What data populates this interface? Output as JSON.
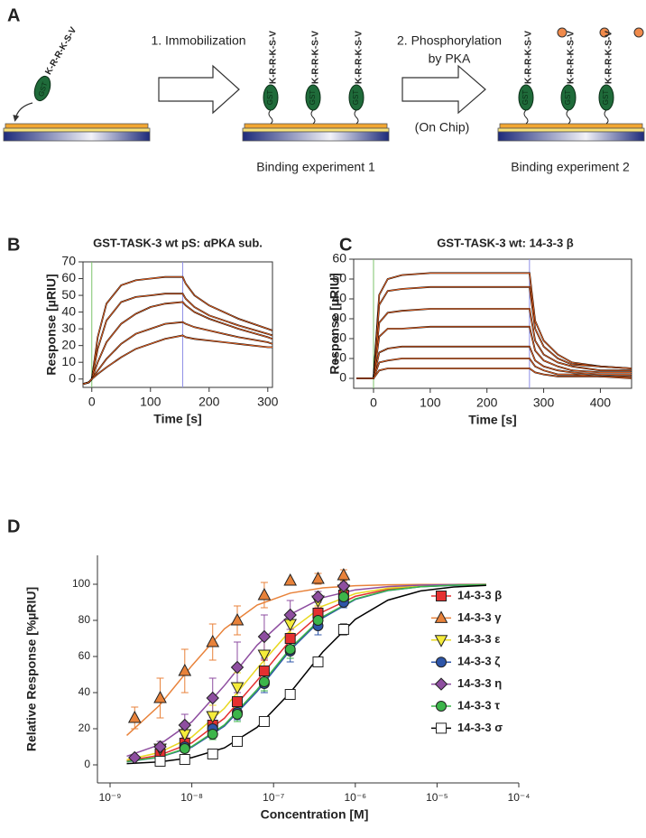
{
  "panel_a": {
    "label": "A",
    "peptide": "K-R-R-K-S-V",
    "gst": "GST",
    "step_1": "1. Immobilization",
    "step_2": [
      "2. Phosphorylation",
      "by PKA"
    ],
    "on_chip": "(On Chip)",
    "result_1": "Binding experiment 1",
    "result_2": "Binding experiment 2"
  },
  "chart_data": [
    {
      "type": "line",
      "panel": "B",
      "title": "GST-TASK-3 wt pS: αPKA sub.",
      "x_label": "Time [s]",
      "y_label": "Response [µRIU]",
      "frame": true,
      "fit_color": "#f26522",
      "xlim": [
        -15,
        308
      ],
      "ylim": [
        -5,
        70
      ],
      "xticks": [
        0,
        100,
        200,
        300
      ],
      "yticks": [
        0,
        10,
        20,
        30,
        40,
        50,
        60,
        70
      ],
      "injections": [
        {
          "x": 0,
          "color": "#7cc36b"
        },
        {
          "x": 155,
          "color": "#8f8fe6"
        }
      ],
      "x": [
        -15,
        -5,
        0,
        10,
        25,
        50,
        75,
        100,
        125,
        155,
        160,
        175,
        200,
        250,
        300,
        308
      ],
      "series": [
        {
          "color": "#000000",
          "values": [
            -3,
            -2,
            0,
            25,
            45,
            56,
            59,
            60,
            61,
            61,
            57,
            50,
            44,
            36,
            30,
            29
          ]
        },
        {
          "color": "#000000",
          "values": [
            -3,
            -2,
            0,
            18,
            35,
            46,
            49,
            50,
            51,
            51,
            48,
            43,
            38,
            32,
            27,
            26
          ]
        },
        {
          "color": "#000000",
          "values": [
            -3,
            -2,
            0,
            10,
            22,
            33,
            39,
            43,
            45,
            46,
            44,
            40,
            36,
            30,
            25,
            24
          ]
        },
        {
          "color": "#000000",
          "values": [
            -3,
            -2,
            0,
            5,
            12,
            21,
            27,
            30,
            33,
            34,
            33,
            31,
            29,
            25,
            22,
            21
          ]
        },
        {
          "color": "#000000",
          "values": [
            -3,
            -2,
            0,
            3,
            7,
            13,
            18,
            21,
            24,
            26,
            25,
            24,
            23,
            21,
            19,
            19
          ]
        }
      ]
    },
    {
      "type": "line",
      "panel": "C",
      "title": "GST-TASK-3 wt: 14-3-3 β",
      "x_label": "Time [s]",
      "y_label": "Response [µRIU]",
      "frame": true,
      "fit_color": "#f26522",
      "xlim": [
        -35,
        455
      ],
      "ylim": [
        -5,
        60
      ],
      "xticks": [
        0,
        100,
        200,
        300,
        400
      ],
      "yticks": [
        0,
        10,
        20,
        30,
        40,
        50,
        60
      ],
      "injections": [
        {
          "x": 0,
          "color": "#7cc36b"
        },
        {
          "x": 275,
          "color": "#8f8fe6"
        }
      ],
      "x": [
        -30,
        -5,
        0,
        10,
        25,
        50,
        100,
        200,
        275,
        285,
        300,
        325,
        350,
        400,
        455
      ],
      "series": [
        {
          "color": "#000000",
          "values": [
            0,
            0,
            0,
            42,
            50,
            52,
            53,
            53,
            53,
            29,
            19,
            12,
            8,
            6,
            5
          ]
        },
        {
          "color": "#000000",
          "values": [
            0,
            0,
            0,
            37,
            44,
            45,
            46,
            46,
            46,
            25,
            16,
            10,
            7,
            6,
            5
          ]
        },
        {
          "color": "#000000",
          "values": [
            0,
            0,
            0,
            28,
            33,
            34,
            35,
            35,
            35,
            19,
            12,
            8,
            6,
            4,
            4
          ]
        },
        {
          "color": "#000000",
          "values": [
            0,
            0,
            0,
            21,
            25,
            25,
            26,
            26,
            26,
            14,
            9,
            6,
            4,
            3,
            3
          ]
        },
        {
          "color": "#000000",
          "values": [
            0,
            0,
            0,
            13,
            15,
            16,
            16,
            16,
            16,
            9,
            6,
            4,
            3,
            2,
            2
          ]
        },
        {
          "color": "#000000",
          "values": [
            0,
            0,
            0,
            8,
            9,
            10,
            10,
            10,
            10,
            6,
            4,
            2,
            2,
            1,
            1
          ]
        },
        {
          "color": "#000000",
          "values": [
            0,
            0,
            0,
            4,
            5,
            5,
            5,
            5,
            5,
            3,
            2,
            1,
            1,
            1,
            0
          ]
        }
      ]
    },
    {
      "type": "scatter",
      "panel": "D",
      "x_label": "Concentration [M]",
      "y_label": "Relative Response [%µRIU]",
      "xlog": true,
      "xlim": [
        1e-09,
        0.0001
      ],
      "xticks": [
        {
          "value": 1e-09,
          "label": "10⁻⁹"
        },
        {
          "value": 1e-08,
          "label": "10⁻⁸"
        },
        {
          "value": 1e-07,
          "label": "10⁻⁷"
        },
        {
          "value": 1e-06,
          "label": "10⁻⁶"
        },
        {
          "value": 1e-05,
          "label": "10⁻⁵"
        },
        {
          "value": 0.0001,
          "label": "10⁻⁴"
        }
      ],
      "ylim": [
        -10,
        116
      ],
      "yticks": [
        0,
        20,
        40,
        60,
        80,
        100
      ],
      "legend": "right",
      "x": [
        2e-09,
        4.1e-09,
        8.2e-09,
        1.8e-08,
        3.6e-08,
        7.7e-08,
        1.6e-07,
        3.5e-07,
        7.2e-07
      ],
      "fit_x": [
        1.6e-09,
        4e-09,
        1e-08,
        2.5e-08,
        6.3e-08,
        1.6e-07,
        4e-07,
        1e-06,
        2.5e-06,
        6.3e-06,
        1.6e-05,
        4e-05
      ],
      "series": [
        {
          "name": "14-3-3 β",
          "marker": "square",
          "color": "#e53030",
          "line_color": "#e53030",
          "values": [
            null,
            6,
            12,
            22,
            35,
            52,
            70,
            84,
            94
          ],
          "errors": [
            null,
            2,
            3,
            4,
            5,
            6,
            5,
            3,
            2
          ],
          "fit": [
            2.2,
            5.3,
            12.2,
            25.8,
            46.7,
            69.0,
            84.7,
            93.3,
            97.2,
            98.9,
            99.6,
            99.8
          ]
        },
        {
          "name": "14-3-3 γ",
          "marker": "triangle-up",
          "color": "#e8823a",
          "line_color": "#e8823a",
          "values": [
            26,
            37,
            52,
            68,
            80,
            94,
            102,
            103,
            105
          ],
          "errors": [
            6,
            11,
            12,
            10,
            8,
            7,
            null,
            3,
            3
          ],
          "fit": [
            16.3,
            32.8,
            54.9,
            75.3,
            88.5,
            95.1,
            98.0,
            99.2,
            99.7,
            99.9,
            99.9,
            100
          ]
        },
        {
          "name": "14-3-3 ε",
          "marker": "triangle-down",
          "color": "#f5ec3a",
          "line_color": "#e8d820",
          "values": [
            null,
            9,
            17,
            27,
            43,
            61,
            78,
            91,
            97
          ],
          "errors": [
            null,
            2,
            4,
            6,
            8,
            9,
            5,
            3,
            2
          ],
          "fit": [
            2.8,
            6.8,
            15.4,
            31.3,
            53.4,
            74.4,
            87.9,
            94.8,
            97.8,
            99.1,
            99.7,
            99.9
          ]
        },
        {
          "name": "14-3-3 ζ",
          "marker": "circle",
          "color": "#2d55a8",
          "line_color": "#2d55a8",
          "values": [
            null,
            null,
            10,
            20,
            29,
            45,
            63,
            77,
            90
          ],
          "errors": [
            null,
            null,
            2,
            3,
            4,
            5,
            6,
            5,
            3
          ],
          "fit": [
            1.7,
            4.2,
            9.8,
            21.4,
            40.6,
            63.5,
            81.3,
            91.6,
            96.5,
            98.6,
            99.4,
            99.8
          ]
        },
        {
          "name": "14-3-3 η",
          "marker": "diamond",
          "color": "#8e4ea0",
          "line_color": "#8e4ea0",
          "values": [
            4,
            10,
            22,
            37,
            54,
            71,
            83,
            93,
            99
          ],
          "errors": [
            1,
            3,
            6,
            11,
            14,
            12,
            8,
            3,
            2
          ],
          "fit": [
            4.8,
            11.1,
            23.8,
            43.9,
            66.3,
            83.3,
            92.6,
            96.9,
            98.7,
            99.5,
            99.8,
            99.9
          ]
        },
        {
          "name": "14-3-3 τ",
          "marker": "circle",
          "color": "#3cb54a",
          "line_color": "#3cb54a",
          "values": [
            null,
            null,
            9,
            17,
            28,
            46,
            64,
            80,
            93
          ],
          "errors": [
            null,
            null,
            2,
            3,
            4,
            5,
            5,
            4,
            2
          ],
          "fit": [
            1.8,
            4.3,
            10.2,
            22.1,
            41.7,
            64.5,
            82.0,
            91.9,
            96.6,
            98.6,
            99.5,
            99.8
          ]
        },
        {
          "name": "14-3-3 σ",
          "marker": "square",
          "color": "#ffffff",
          "line_color": "#000000",
          "values": [
            null,
            2,
            3,
            6,
            13,
            24,
            39,
            57,
            75
          ],
          "errors": [
            null,
            1,
            1,
            1,
            1,
            2,
            2,
            2,
            3
          ],
          "fit": [
            0.7,
            1.6,
            4.0,
            9.4,
            20.8,
            40.0,
            62.5,
            80.6,
            91.2,
            96.3,
            98.5,
            99.4
          ]
        }
      ]
    }
  ]
}
